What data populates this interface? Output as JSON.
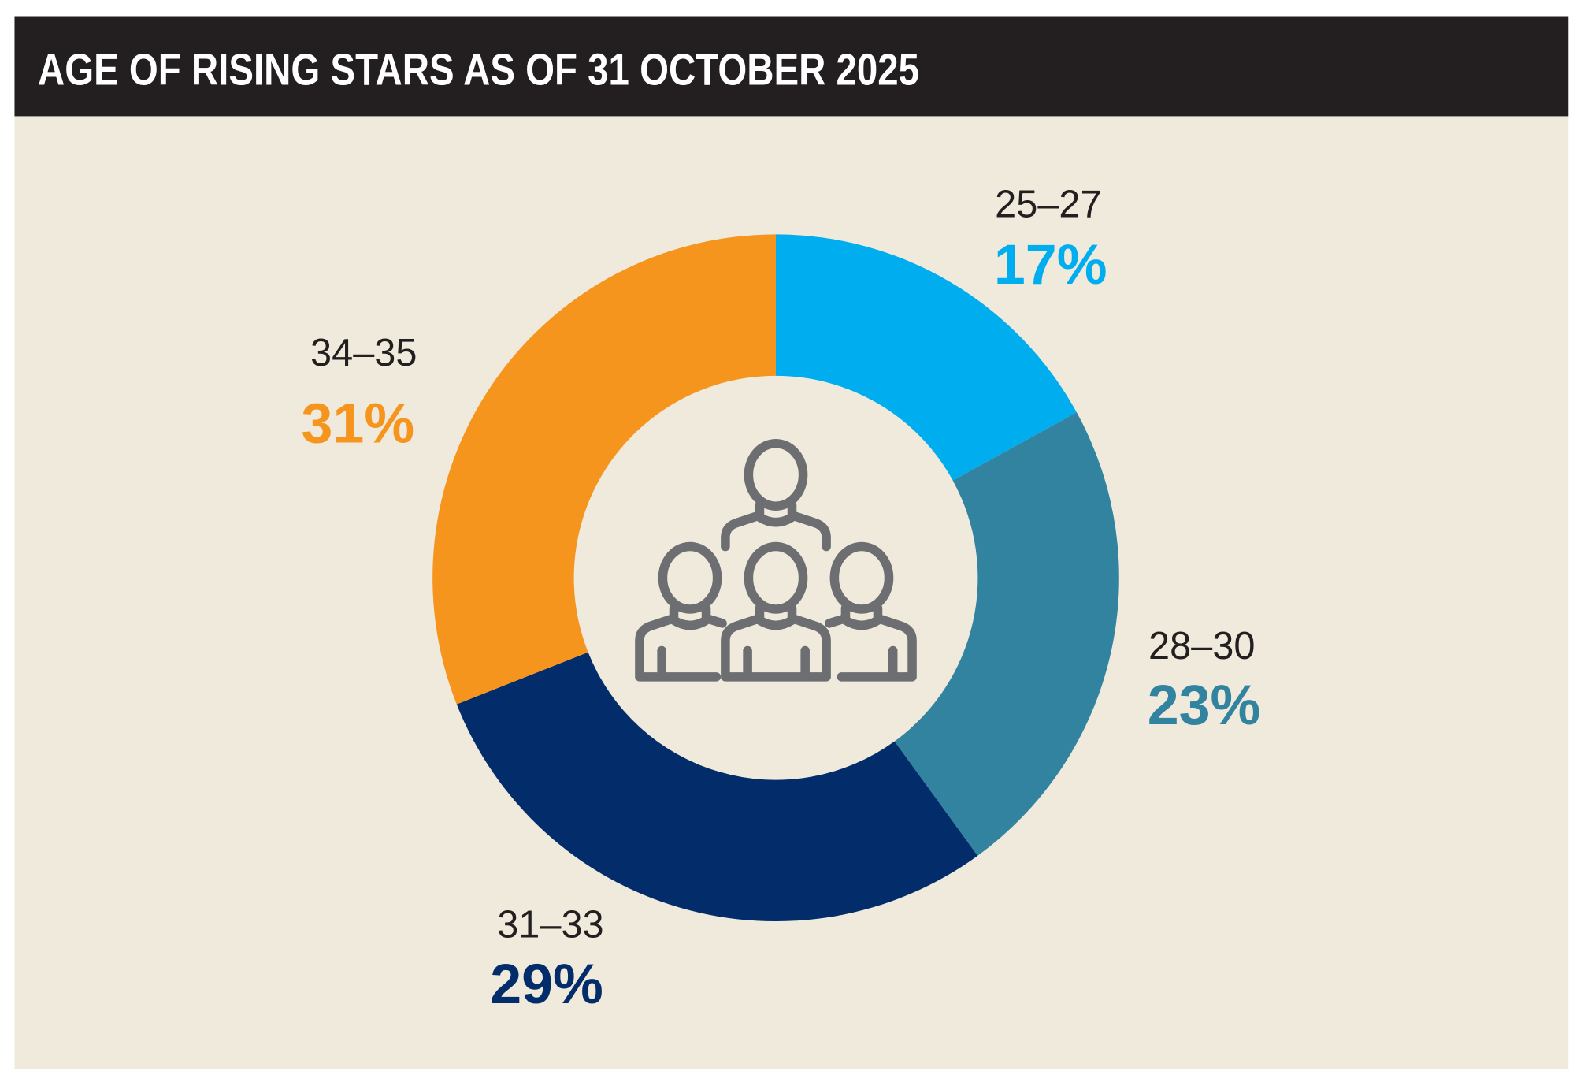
{
  "chart_data": {
    "type": "pie",
    "variant": "donut",
    "title": "AGE OF RISING STARS AS OF 31 OCTOBER 2025",
    "categories": [
      "25–27",
      "28–30",
      "31–33",
      "34–35"
    ],
    "values": [
      17,
      23,
      29,
      31
    ],
    "value_labels": [
      "17%",
      "23%",
      "29%",
      "31%"
    ],
    "colors": [
      "#00aeef",
      "#3283a0",
      "#022d6a",
      "#f6951e"
    ],
    "start": "top",
    "direction": "clockwise",
    "center_icon": "people-group-icon"
  },
  "colors": {
    "header_bg": "#231f20",
    "panel_bg": "#f0eadc",
    "icon": "#6d6e71"
  }
}
